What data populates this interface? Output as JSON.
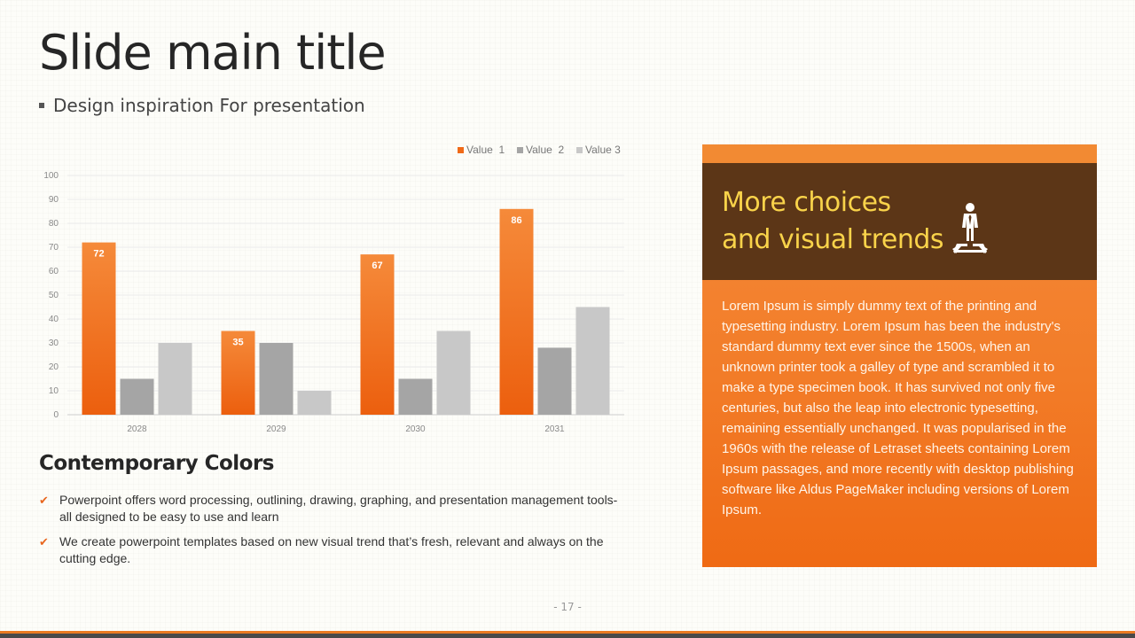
{
  "slide": {
    "title": "Slide main title",
    "subtitle": "Design inspiration For presentation",
    "page_number": "- 17 -"
  },
  "chart_data": {
    "type": "bar",
    "categories": [
      "2028",
      "2029",
      "2030",
      "2031"
    ],
    "series": [
      {
        "name": "Value  1",
        "values": [
          72,
          35,
          67,
          86
        ],
        "color": "#f06a18"
      },
      {
        "name": "Value  2",
        "values": [
          15,
          30,
          15,
          28
        ],
        "color": "#a5a5a5"
      },
      {
        "name": "Value 3",
        "values": [
          30,
          10,
          35,
          45
        ],
        "color": "#c8c8c8"
      }
    ],
    "ylim": [
      0,
      100
    ],
    "yticks": [
      0,
      10,
      20,
      30,
      40,
      50,
      60,
      70,
      80,
      90,
      100
    ],
    "data_labels_series": 0,
    "grid": true,
    "legend": "top-right"
  },
  "section": {
    "title": "Contemporary Colors",
    "bullets": [
      "Powerpoint offers word processing, outlining, drawing, graphing, and presentation management tools- all designed to be easy to use and learn",
      "We create powerpoint templates based on new visual trend that’s fresh, relevant and always on the cutting edge."
    ]
  },
  "panel": {
    "heading_line1": "More choices",
    "heading_line2": "and visual trends",
    "icon": "person-crossroads-icon",
    "body": "Lorem Ipsum is simply dummy text of the printing and typesetting industry. Lorem Ipsum has been the industry's standard dummy text ever since the 1500s, when an unknown printer took a galley of type and scrambled it to make a type specimen book. It has survived not only five centuries, but also the leap into electronic typesetting, remaining essentially unchanged. It was popularised in the 1960s with the release of Letraset sheets containing Lorem Ipsum passages, and more recently with desktop publishing software like Aldus PageMaker including versions of Lorem Ipsum."
  },
  "colors": {
    "accent": "#f06a18",
    "panel_brown": "#5c3617",
    "panel_heading": "#f9d34a"
  }
}
